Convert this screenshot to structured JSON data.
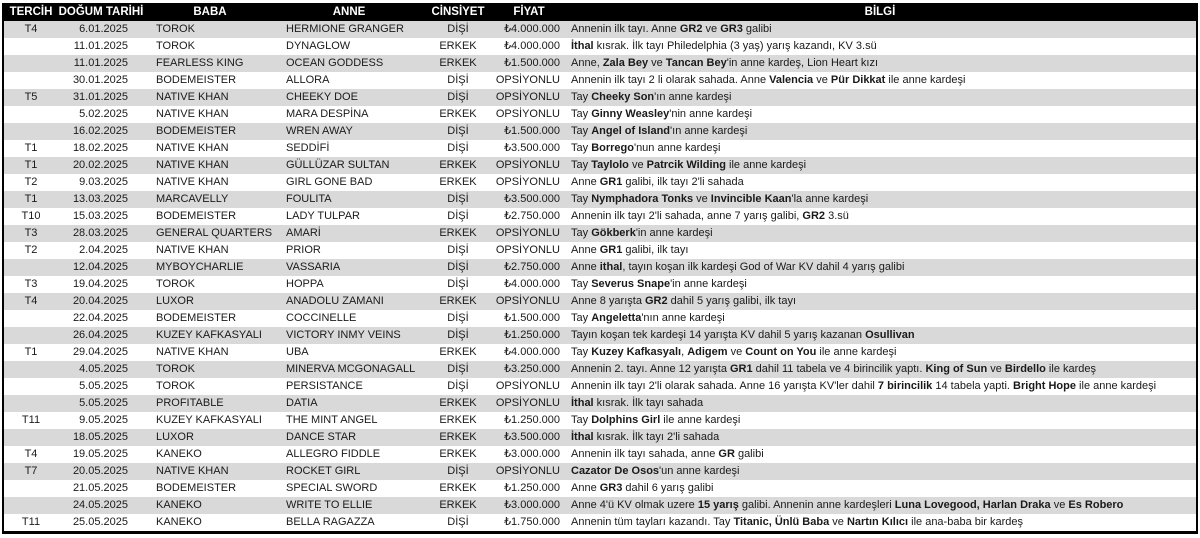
{
  "colors": {
    "header_bg": "#000000",
    "header_text": "#ffffff",
    "row_alt_bg": "#d9d9d9",
    "row_bg": "#ffffff",
    "border": "#000000",
    "body_text": "#1a1a1a"
  },
  "table": {
    "columns": [
      {
        "key": "tercih",
        "label": "TERCİH"
      },
      {
        "key": "dogum",
        "label": "DOĞUM TARİHİ"
      },
      {
        "key": "baba",
        "label": "BABA"
      },
      {
        "key": "anne",
        "label": "ANNE"
      },
      {
        "key": "cinsiyet",
        "label": "CİNSİYET"
      },
      {
        "key": "fiyat",
        "label": "FİYAT"
      },
      {
        "key": "bilgi",
        "label": "BİLGİ"
      }
    ],
    "rows": [
      {
        "tercih": "T4",
        "dogum": "6.01.2025",
        "baba": "TOROK",
        "anne": "HERMIONE GRANGER",
        "cinsiyet": "DİŞİ",
        "fiyat": "₺4.000.000",
        "bilgi": "Annenin ilk tayı. Anne **GR2** ve **GR3** galibi"
      },
      {
        "tercih": "",
        "dogum": "11.01.2025",
        "baba": "TOROK",
        "anne": "DYNAGLOW",
        "cinsiyet": "ERKEK",
        "fiyat": "₺4.000.000",
        "bilgi": "**İthal** kısrak. İlk tayı Philedelphia (3 yaş) yarış kazandı, KV 3.sü"
      },
      {
        "tercih": "",
        "dogum": "11.01.2025",
        "baba": "FEARLESS KING",
        "anne": "OCEAN GODDESS",
        "cinsiyet": "ERKEK",
        "fiyat": "₺1.500.000",
        "bilgi": "Anne, **Zala Bey** ve **Tancan Bey**'in anne kardeş, Lion Heart kızı"
      },
      {
        "tercih": "",
        "dogum": "30.01.2025",
        "baba": "BODEMEISTER",
        "anne": "ALLORA",
        "cinsiyet": "DİŞİ",
        "fiyat": "OPSİYONLU",
        "bilgi": "Annenin ilk tayı 2 li olarak sahada. Anne **Valencia** ve **Pür Dikkat** ile anne kardeşi"
      },
      {
        "tercih": "T5",
        "dogum": "31.01.2025",
        "baba": "NATIVE KHAN",
        "anne": "CHEEKY DOE",
        "cinsiyet": "DİŞİ",
        "fiyat": "OPSİYONLU",
        "bilgi": "Tay **Cheeky Son**'ın anne kardeşi"
      },
      {
        "tercih": "",
        "dogum": "5.02.2025",
        "baba": "NATIVE KHAN",
        "anne": "MARA DESPİNA",
        "cinsiyet": "ERKEK",
        "fiyat": "OPSİYONLU",
        "bilgi": "Tay **Ginny Weasley**'nin anne kardeşi"
      },
      {
        "tercih": "",
        "dogum": "16.02.2025",
        "baba": "BODEMEISTER",
        "anne": "WREN AWAY",
        "cinsiyet": "DİŞİ",
        "fiyat": "₺1.500.000",
        "bilgi": "Tay **Angel of Island**'ın anne kardeşi"
      },
      {
        "tercih": "T1",
        "dogum": "18.02.2025",
        "baba": "NATIVE KHAN",
        "anne": "SEDDİFİ",
        "cinsiyet": "DİŞİ",
        "fiyat": "₺3.500.000",
        "bilgi": "Tay **Borrego**'nun anne kardeşi"
      },
      {
        "tercih": "T1",
        "dogum": "20.02.2025",
        "baba": "NATIVE KHAN",
        "anne": "GÜLLÜZAR SULTAN",
        "cinsiyet": "ERKEK",
        "fiyat": "OPSİYONLU",
        "bilgi": "Tay **Taylolo** ve **Patrcik Wilding** ile anne kardeşi"
      },
      {
        "tercih": "T2",
        "dogum": "9.03.2025",
        "baba": "NATIVE KHAN",
        "anne": "GIRL GONE BAD",
        "cinsiyet": "ERKEK",
        "fiyat": "OPSİYONLU",
        "bilgi": "Anne **GR1** galibi, ilk tayı 2'li sahada"
      },
      {
        "tercih": "T1",
        "dogum": "13.03.2025",
        "baba": "MARCAVELLY",
        "anne": "FOULITA",
        "cinsiyet": "DİŞİ",
        "fiyat": "₺3.500.000",
        "bilgi": "Tay **Nymphadora Tonks** ve **Invincible Kaan**'la anne kardeşi"
      },
      {
        "tercih": "T10",
        "dogum": "15.03.2025",
        "baba": "BODEMEISTER",
        "anne": "LADY TULPAR",
        "cinsiyet": "DİŞİ",
        "fiyat": "₺2.750.000",
        "bilgi": "Annenin ilk tayı 2'li sahada, anne 7 yarış galibi, **GR2** 3.sü"
      },
      {
        "tercih": "T3",
        "dogum": "28.03.2025",
        "baba": "GENERAL QUARTERS",
        "anne": "AMARİ",
        "cinsiyet": "ERKEK",
        "fiyat": "OPSİYONLU",
        "bilgi": "Tay **Gökberk**'in anne kardeşi"
      },
      {
        "tercih": "T2",
        "dogum": "2.04.2025",
        "baba": "NATIVE KHAN",
        "anne": "PRIOR",
        "cinsiyet": "DİŞİ",
        "fiyat": "OPSİYONLU",
        "bilgi": "Anne **GR1** galibi, ilk tayı"
      },
      {
        "tercih": "",
        "dogum": "12.04.2025",
        "baba": "MYBOYCHARLIE",
        "anne": "VASSARIA",
        "cinsiyet": "DİŞİ",
        "fiyat": "₺2.750.000",
        "bilgi": "Anne **ithal**, tayın koşan ilk kardeşi God of War KV dahil 4 yarış galibi"
      },
      {
        "tercih": "T3",
        "dogum": "19.04.2025",
        "baba": "TOROK",
        "anne": "HOPPA",
        "cinsiyet": "DİŞİ",
        "fiyat": "₺4.000.000",
        "bilgi": "Tay **Severus Snape**'in anne kardeşi"
      },
      {
        "tercih": "T4",
        "dogum": "20.04.2025",
        "baba": "LUXOR",
        "anne": "ANADOLU ZAMANI",
        "cinsiyet": "ERKEK",
        "fiyat": "OPSİYONLU",
        "bilgi": "Anne 8 yarışta **GR2** dahil 5 yarış galibi, ilk tayı"
      },
      {
        "tercih": "",
        "dogum": "22.04.2025",
        "baba": "BODEMEISTER",
        "anne": "COCCINELLE",
        "cinsiyet": "DİŞİ",
        "fiyat": "₺1.500.000",
        "bilgi": "Tay **Angeletta**'nın anne kardeşi"
      },
      {
        "tercih": "",
        "dogum": "26.04.2025",
        "baba": "KUZEY KAFKASYALI",
        "anne": "VICTORY INMY VEINS",
        "cinsiyet": "DİŞİ",
        "fiyat": "₺1.250.000",
        "bilgi": "Tayın koşan tek kardeşi 14 yarışta KV dahil 5 yarış kazanan **Osullivan**"
      },
      {
        "tercih": "T1",
        "dogum": "29.04.2025",
        "baba": "NATIVE KHAN",
        "anne": "UBA",
        "cinsiyet": "ERKEK",
        "fiyat": "₺4.000.000",
        "bilgi": "Tay **Kuzey Kafkasyalı**, **Adigem** ve **Count on You** ile anne kardeşi"
      },
      {
        "tercih": "",
        "dogum": "4.05.2025",
        "baba": "TOROK",
        "anne": "MINERVA MCGONAGALL",
        "cinsiyet": "DİŞİ",
        "fiyat": "₺3.250.000",
        "bilgi": "Annenin 2. tayı. Anne 12 yarışta **GR1** dahil 11 tabela ve 4 birincilik yaptı. **King of Sun** ve **Birdello** ile kardeş"
      },
      {
        "tercih": "",
        "dogum": "5.05.2025",
        "baba": "TOROK",
        "anne": "PERSISTANCE",
        "cinsiyet": "DİŞİ",
        "fiyat": "OPSİYONLU",
        "bilgi": "Annenin ilk tayı 2'li olarak sahada. Anne 16 yarışta KV'ler dahil **7 birincilik** 14 tabela yapti. **Bright Hope** ile anne kardeşi"
      },
      {
        "tercih": "",
        "dogum": "5.05.2025",
        "baba": "PROFITABLE",
        "anne": "DATIA",
        "cinsiyet": "ERKEK",
        "fiyat": "OPSİYONLU",
        "bilgi": "**İthal** kısrak. İlk tayı sahada"
      },
      {
        "tercih": "T11",
        "dogum": "9.05.2025",
        "baba": "KUZEY KAFKASYALI",
        "anne": "THE MINT ANGEL",
        "cinsiyet": "ERKEK",
        "fiyat": "₺1.250.000",
        "bilgi": "Tay **Dolphins Girl** ile anne kardeşi"
      },
      {
        "tercih": "",
        "dogum": "18.05.2025",
        "baba": "LUXOR",
        "anne": "DANCE STAR",
        "cinsiyet": "ERKEK",
        "fiyat": "₺3.500.000",
        "bilgi": "**İthal** kısrak. İlk tayı 2'li sahada"
      },
      {
        "tercih": "T4",
        "dogum": "19.05.2025",
        "baba": "KANEKO",
        "anne": "ALLEGRO FIDDLE",
        "cinsiyet": "ERKEK",
        "fiyat": "₺3.000.000",
        "bilgi": "Annenin ilk tayı sahada, anne **GR** galibi"
      },
      {
        "tercih": "T7",
        "dogum": "20.05.2025",
        "baba": "NATIVE KHAN",
        "anne": "ROCKET GIRL",
        "cinsiyet": "DİŞİ",
        "fiyat": "OPSİYONLU",
        "bilgi": "**Cazator De Osos**'un anne kardeşi"
      },
      {
        "tercih": "",
        "dogum": "21.05.2025",
        "baba": "BODEMEISTER",
        "anne": "SPECIAL SWORD",
        "cinsiyet": "ERKEK",
        "fiyat": "₺1.250.000",
        "bilgi": "Anne **GR3** dahil 6 yarış galibi"
      },
      {
        "tercih": "",
        "dogum": "24.05.2025",
        "baba": "KANEKO",
        "anne": "WRITE TO ELLIE",
        "cinsiyet": "ERKEK",
        "fiyat": "₺3.000.000",
        "bilgi": "Anne 4'ü KV olmak uzere **15 yarış** galibi. Annenin anne kardeşleri **Luna Lovegood, Harlan Draka** ve **Es Robero**"
      },
      {
        "tercih": "T11",
        "dogum": "25.05.2025",
        "baba": "KANEKO",
        "anne": "BELLA RAGAZZA",
        "cinsiyet": "DİŞİ",
        "fiyat": "₺1.750.000",
        "bilgi": "Annenin tüm tayları kazandı. Tay **Titanic, Ünlü Baba** ve **Nartın Kılıcı** ile ana-baba bir kardeş"
      }
    ]
  }
}
